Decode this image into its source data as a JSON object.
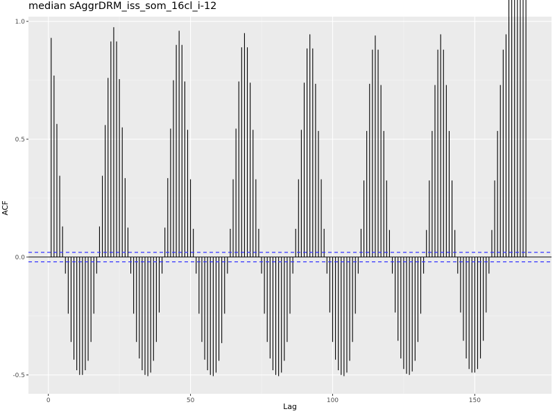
{
  "chart_data": {
    "type": "bar",
    "title": "median sAggrDRM_iss_som_16cl_i-12",
    "xlabel": "Lag",
    "ylabel": "ACF",
    "xlim": [
      -7,
      177
    ],
    "ylim": [
      -0.58,
      1.02
    ],
    "x_ticks": [
      0,
      50,
      100,
      150
    ],
    "y_ticks": [
      -0.5,
      0.0,
      0.5,
      1.0
    ],
    "y_tick_labels": [
      "-0.5",
      "0.0",
      "0.5",
      "1.0"
    ],
    "grid": true,
    "confidence_band": [
      -0.02,
      0.02
    ],
    "confidence_color": "#3333ff",
    "background_color": "#ebebeb",
    "bar_color": "#000000",
    "lags": [
      1,
      2,
      3,
      4,
      5,
      6,
      7,
      8,
      9,
      10,
      11,
      12,
      13,
      14,
      15,
      16,
      17,
      18,
      19,
      20,
      21,
      22,
      23,
      24,
      25,
      26,
      27,
      28,
      29,
      30,
      31,
      32,
      33,
      34,
      35,
      36,
      37,
      38,
      39,
      40,
      41,
      42,
      43,
      44,
      45,
      46,
      47,
      48,
      49,
      50,
      51,
      52,
      53,
      54,
      55,
      56,
      57,
      58,
      59,
      60,
      61,
      62,
      63,
      64,
      65,
      66,
      67,
      68,
      69,
      70,
      71,
      72,
      73,
      74,
      75,
      76,
      77,
      78,
      79,
      80,
      81,
      82,
      83,
      84,
      85,
      86,
      87,
      88,
      89,
      90,
      91,
      92,
      93,
      94,
      95,
      96,
      97,
      98,
      99,
      100,
      101,
      102,
      103,
      104,
      105,
      106,
      107,
      108,
      109,
      110,
      111,
      112,
      113,
      114,
      115,
      116,
      117,
      118,
      119,
      120,
      121,
      122,
      123,
      124,
      125,
      126,
      127,
      128,
      129,
      130,
      131,
      132,
      133,
      134,
      135,
      136,
      137,
      138,
      139,
      140,
      141,
      142,
      143,
      144,
      145,
      146,
      147,
      148,
      149,
      150,
      151,
      152,
      153,
      154,
      155,
      156,
      157,
      158,
      159,
      160,
      161,
      162,
      163,
      164,
      165,
      166,
      167,
      168
    ],
    "values": [
      0.93,
      0.77,
      0.565,
      0.345,
      0.13,
      -0.07,
      -0.24,
      -0.36,
      -0.435,
      -0.48,
      -0.5,
      -0.5,
      -0.48,
      -0.44,
      -0.36,
      -0.24,
      -0.07,
      0.13,
      0.345,
      0.56,
      0.76,
      0.915,
      0.975,
      0.915,
      0.755,
      0.55,
      0.335,
      0.125,
      -0.07,
      -0.24,
      -0.36,
      -0.43,
      -0.48,
      -0.5,
      -0.505,
      -0.49,
      -0.44,
      -0.36,
      -0.235,
      -0.07,
      0.125,
      0.335,
      0.545,
      0.75,
      0.9,
      0.96,
      0.9,
      0.745,
      0.54,
      0.33,
      0.12,
      -0.07,
      -0.24,
      -0.36,
      -0.435,
      -0.48,
      -0.5,
      -0.505,
      -0.49,
      -0.44,
      -0.365,
      -0.24,
      -0.07,
      0.12,
      0.33,
      0.545,
      0.745,
      0.89,
      0.95,
      0.89,
      0.74,
      0.54,
      0.33,
      0.12,
      -0.07,
      -0.24,
      -0.36,
      -0.43,
      -0.48,
      -0.5,
      -0.505,
      -0.49,
      -0.44,
      -0.36,
      -0.24,
      -0.07,
      0.12,
      0.33,
      0.54,
      0.74,
      0.885,
      0.945,
      0.885,
      0.735,
      0.535,
      0.33,
      0.12,
      -0.07,
      -0.235,
      -0.36,
      -0.435,
      -0.48,
      -0.5,
      -0.505,
      -0.49,
      -0.44,
      -0.36,
      -0.24,
      -0.07,
      0.12,
      0.325,
      0.535,
      0.735,
      0.88,
      0.94,
      0.88,
      0.73,
      0.535,
      0.325,
      0.115,
      -0.07,
      -0.235,
      -0.355,
      -0.43,
      -0.475,
      -0.495,
      -0.5,
      -0.485,
      -0.44,
      -0.36,
      -0.24,
      -0.07,
      0.115,
      0.325,
      0.535,
      0.73,
      0.88,
      0.945,
      0.88,
      0.73,
      0.535,
      0.325,
      0.115,
      -0.07,
      -0.235,
      -0.355,
      -0.43,
      -0.475,
      -0.49,
      -0.49,
      -0.475,
      -0.43,
      -0.355,
      -0.235,
      -0.07,
      0.115,
      0.325,
      0.535,
      0.73,
      0.88,
      0.945
    ]
  }
}
